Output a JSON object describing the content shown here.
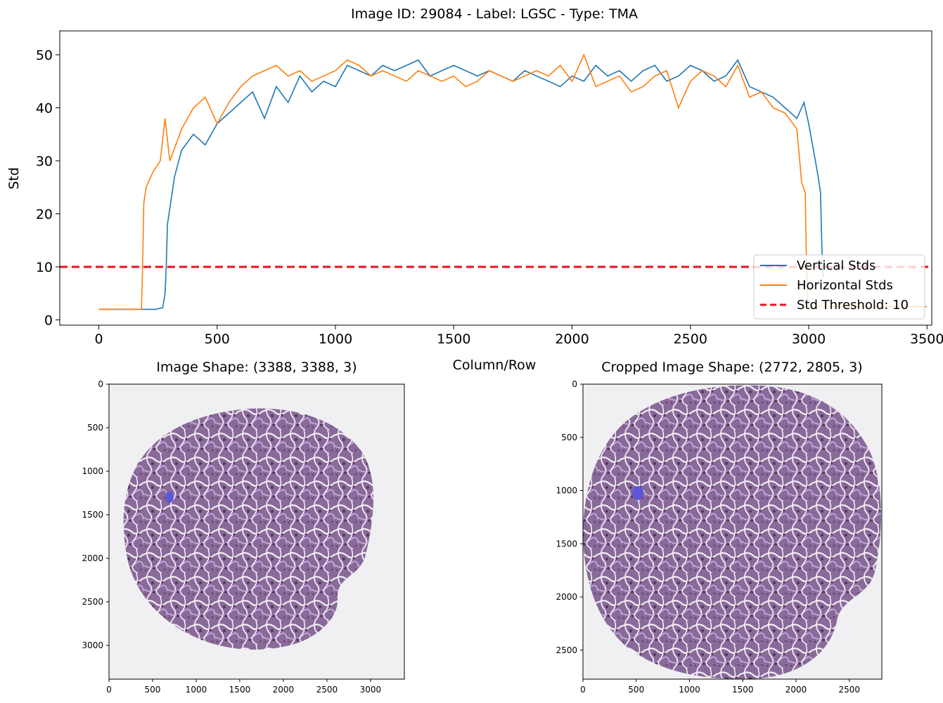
{
  "figure": {
    "suptitle": "Image ID: 29084 - Label: LGSC - Type: TMA"
  },
  "chart_data": [
    {
      "type": "line",
      "title": "",
      "xlabel": "Column/Row",
      "ylabel": "Std",
      "xlim": [
        -165,
        3520
      ],
      "ylim": [
        -1,
        54.5
      ],
      "xticks": [
        0,
        500,
        1000,
        1500,
        2000,
        2500,
        3000,
        3500
      ],
      "yticks": [
        0,
        10,
        20,
        30,
        40,
        50
      ],
      "grid": false,
      "legend_position": "lower-right",
      "threshold": {
        "name": "Std Threshold: 10",
        "value": 10,
        "color": "#e8121b",
        "style": "dashed"
      },
      "series": [
        {
          "name": "Vertical Stds",
          "color": "#1f77b4",
          "x": [
            0,
            150,
            240,
            270,
            280,
            285,
            290,
            300,
            320,
            350,
            400,
            450,
            500,
            550,
            600,
            650,
            700,
            750,
            800,
            850,
            900,
            950,
            1000,
            1050,
            1100,
            1150,
            1200,
            1250,
            1300,
            1350,
            1400,
            1450,
            1500,
            1550,
            1600,
            1650,
            1700,
            1750,
            1800,
            1850,
            1900,
            1950,
            2000,
            2050,
            2100,
            2150,
            2200,
            2250,
            2300,
            2350,
            2400,
            2450,
            2500,
            2550,
            2600,
            2650,
            2700,
            2750,
            2800,
            2850,
            2900,
            2950,
            2980,
            3000,
            3020,
            3040,
            3050,
            3055,
            3060
          ],
          "y": [
            2,
            2,
            2,
            2.3,
            5,
            10,
            18,
            21,
            27,
            32,
            35,
            33,
            37,
            39,
            41,
            43,
            38,
            44,
            41,
            46,
            43,
            45,
            44,
            48,
            47,
            46,
            48,
            47,
            48,
            49,
            46,
            47,
            48,
            47,
            46,
            47,
            46,
            45,
            47,
            46,
            45,
            44,
            46,
            45,
            48,
            46,
            47,
            45,
            47,
            48,
            45,
            46,
            48,
            47,
            45,
            46,
            49,
            44,
            43,
            42,
            40,
            38,
            41,
            37,
            32,
            27,
            24,
            15,
            8
          ]
        },
        {
          "name": "Horizontal Stds",
          "color": "#ff7f0e",
          "x": [
            0,
            100,
            180,
            185,
            190,
            200,
            230,
            260,
            280,
            300,
            350,
            400,
            450,
            500,
            550,
            600,
            650,
            700,
            750,
            800,
            850,
            900,
            950,
            1000,
            1050,
            1100,
            1150,
            1200,
            1250,
            1300,
            1350,
            1400,
            1450,
            1500,
            1550,
            1600,
            1650,
            1700,
            1750,
            1800,
            1850,
            1900,
            1950,
            2000,
            2050,
            2100,
            2150,
            2200,
            2250,
            2300,
            2350,
            2400,
            2450,
            2500,
            2550,
            2600,
            2650,
            2700,
            2750,
            2800,
            2850,
            2900,
            2950,
            2970,
            2985,
            2990,
            2995,
            3000,
            3050,
            3100,
            3200,
            3300,
            3400,
            3500
          ],
          "y": [
            2,
            2,
            2,
            10,
            22,
            25,
            28,
            30,
            38,
            30,
            36,
            40,
            42,
            37,
            41,
            44,
            46,
            47,
            48,
            46,
            47,
            45,
            46,
            47,
            49,
            48,
            46,
            47,
            46,
            45,
            47,
            46,
            45,
            46,
            44,
            45,
            47,
            46,
            45,
            46,
            47,
            46,
            48,
            45,
            50,
            44,
            45,
            46,
            43,
            44,
            46,
            47,
            40,
            45,
            47,
            46,
            44,
            48,
            42,
            43,
            40,
            39,
            36,
            26,
            24,
            12,
            4,
            2.5,
            2.5,
            2.5,
            2.5,
            2.5,
            2.5,
            2.5
          ]
        }
      ]
    },
    {
      "type": "image",
      "title": "Image Shape: (3388, 3388, 3)",
      "xlim": [
        0,
        3388
      ],
      "ylim": [
        3388,
        0
      ],
      "xticks": [
        0,
        500,
        1000,
        1500,
        2000,
        2500,
        3000
      ],
      "yticks": [
        0,
        500,
        1000,
        1500,
        2000,
        2500,
        3000
      ]
    },
    {
      "type": "image",
      "title": "Cropped Image Shape: (2772, 2805, 3)",
      "xlim": [
        0,
        2805
      ],
      "ylim": [
        2772,
        0
      ],
      "xticks": [
        0,
        500,
        1000,
        1500,
        2000,
        2500
      ],
      "yticks": [
        0,
        500,
        1000,
        1500,
        2000,
        2500
      ]
    }
  ]
}
